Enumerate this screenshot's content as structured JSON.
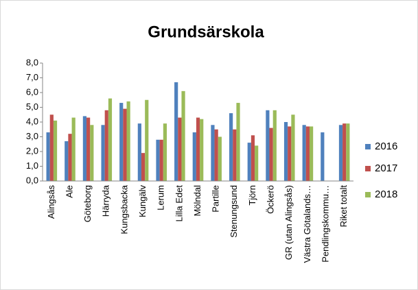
{
  "chart_data": {
    "type": "bar",
    "title": "Grundsärskola",
    "categories": [
      "Alingsås",
      "Ale",
      "Göteborg",
      "Härryda",
      "Kungsbacka",
      "Kungälv",
      "Lerum",
      "Lilla Edet",
      "Mölndal",
      "Partille",
      "Stenungsund",
      "Tjörn",
      "Öckerö",
      "GR (utan Alingsås)",
      "Västra Götalands…",
      "Pendlingskommu…",
      "Riket totalt"
    ],
    "series": [
      {
        "name": "2016",
        "color": "#4f81bd",
        "values": [
          3.3,
          2.7,
          4.4,
          3.8,
          5.3,
          3.9,
          2.8,
          6.7,
          3.3,
          3.8,
          4.6,
          2.6,
          4.8,
          4.0,
          3.8,
          3.3,
          3.8
        ]
      },
      {
        "name": "2017",
        "color": "#c0504d",
        "values": [
          4.5,
          3.2,
          4.3,
          4.8,
          4.9,
          1.9,
          2.8,
          4.3,
          4.3,
          3.5,
          3.5,
          3.1,
          3.6,
          3.7,
          3.7,
          null,
          3.9
        ]
      },
      {
        "name": "2018",
        "color": "#9bbb59",
        "values": [
          4.1,
          4.3,
          3.8,
          5.6,
          5.4,
          5.5,
          3.9,
          6.1,
          4.2,
          3.0,
          5.3,
          2.4,
          4.8,
          4.5,
          3.7,
          null,
          3.9
        ]
      }
    ],
    "ylim": [
      0,
      8
    ],
    "yticks": [
      {
        "value": 0,
        "label": "0,0"
      },
      {
        "value": 1,
        "label": "1,0"
      },
      {
        "value": 2,
        "label": "2,0"
      },
      {
        "value": 3,
        "label": "3,0"
      },
      {
        "value": 4,
        "label": "4,0"
      },
      {
        "value": 5,
        "label": "5,0"
      },
      {
        "value": 6,
        "label": "6,0"
      },
      {
        "value": 7,
        "label": "7,0"
      },
      {
        "value": 8,
        "label": "8,0"
      }
    ],
    "grid": false,
    "legend": "right"
  }
}
